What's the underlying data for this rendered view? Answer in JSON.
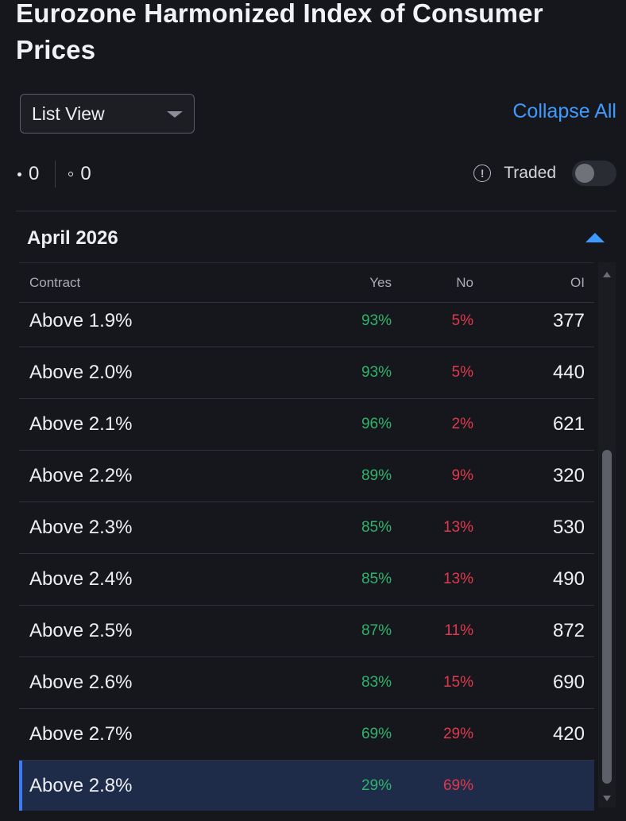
{
  "page": {
    "title": "Eurozone Harmonized Index of Consumer Prices"
  },
  "toolbar": {
    "view_select_value": "List View",
    "collapse_all_label": "Collapse All"
  },
  "counters": {
    "filled_count": "0",
    "open_count": "0"
  },
  "traded": {
    "label": "Traded",
    "enabled": false
  },
  "section": {
    "title": "April 2026"
  },
  "table": {
    "headers": {
      "contract": "Contract",
      "yes": "Yes",
      "no": "No",
      "oi": "OI"
    },
    "rows": [
      {
        "contract": "Above 1.9%",
        "yes": "93%",
        "no": "5%",
        "oi": "377"
      },
      {
        "contract": "Above 2.0%",
        "yes": "93%",
        "no": "5%",
        "oi": "440"
      },
      {
        "contract": "Above 2.1%",
        "yes": "96%",
        "no": "2%",
        "oi": "621"
      },
      {
        "contract": "Above 2.2%",
        "yes": "89%",
        "no": "9%",
        "oi": "320"
      },
      {
        "contract": "Above 2.3%",
        "yes": "85%",
        "no": "13%",
        "oi": "530"
      },
      {
        "contract": "Above 2.4%",
        "yes": "85%",
        "no": "13%",
        "oi": "490"
      },
      {
        "contract": "Above 2.5%",
        "yes": "87%",
        "no": "11%",
        "oi": "872"
      },
      {
        "contract": "Above 2.6%",
        "yes": "83%",
        "no": "15%",
        "oi": "690"
      },
      {
        "contract": "Above 2.7%",
        "yes": "69%",
        "no": "29%",
        "oi": "420"
      },
      {
        "contract": "Above 2.8%",
        "yes": "29%",
        "no": "69%",
        "oi": ""
      }
    ],
    "selected_row": 9
  },
  "colors": {
    "background": "#16171d",
    "accent": "#3d9bff",
    "yes": "#2fb36b",
    "no": "#e0394d",
    "selected_row": "#1e2c4a"
  },
  "icons": {
    "dropdown": "chevron-down-icon",
    "info": "info-icon",
    "section_toggle": "chevron-up-icon"
  }
}
